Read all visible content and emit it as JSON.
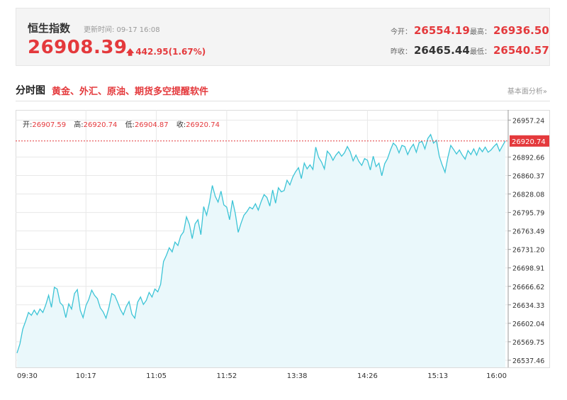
{
  "quote": {
    "name": "恒生指数",
    "update_time": "更新时间: 09-17 16:08",
    "price": "26908.39",
    "change": "442.95(1.67%)",
    "open_label": "今开：",
    "open": "26554.19",
    "high_label": "最高：",
    "high": "26936.50",
    "prev_close_label": "昨收：",
    "prev_close": "26465.44",
    "low_label": "最低：",
    "low": "26540.57"
  },
  "section": {
    "title": "分时图",
    "promo": "黄金、外汇、原油、期货多空提醒软件",
    "link": "基本面分析»"
  },
  "ohlc": {
    "open_label": "开:",
    "open": "26907.59",
    "high_label": "高:",
    "high": "26920.74",
    "low_label": "低:",
    "low": "26904.87",
    "close_label": "收:",
    "close": "26920.74"
  },
  "colors": {
    "up": "#e4393c",
    "line": "#3cc4d6",
    "area": "#eaf8fb",
    "grid": "#e8e8e8"
  },
  "chart_data": {
    "type": "area",
    "title": "",
    "xlabel": "",
    "ylabel": "",
    "x_ticks": [
      "09:30",
      "10:17",
      "11:05",
      "11:52",
      "13:38",
      "14:26",
      "15:13",
      "16:00"
    ],
    "y_ticks": [
      26537.46,
      26569.75,
      26602.04,
      26634.33,
      26666.62,
      26698.91,
      26731.2,
      26763.49,
      26795.79,
      26828.08,
      26860.37,
      26892.66,
      26920.74,
      26957.24
    ],
    "ylim": [
      26525,
      26975
    ],
    "current_value": 26920.74,
    "current_label": "26920.74",
    "grid": true,
    "series": [
      {
        "values": [
          26550,
          26566,
          26592,
          26606,
          26621,
          26616,
          26625,
          26617,
          26627,
          26621,
          26634,
          26651,
          26630,
          26665,
          26662,
          26638,
          26633,
          26612,
          26636,
          26627,
          26654,
          26661,
          26625,
          26612,
          26633,
          26644,
          26660,
          26651,
          26645,
          26629,
          26622,
          26611,
          26630,
          26654,
          26651,
          26639,
          26626,
          26617,
          26631,
          26640,
          26618,
          26611,
          26639,
          26648,
          26635,
          26642,
          26656,
          26648,
          26662,
          26657,
          26670,
          26710,
          26721,
          26734,
          26727,
          26744,
          26738,
          26755,
          26762,
          26788,
          26775,
          26750,
          26776,
          26783,
          26757,
          26806,
          26791,
          26813,
          26843,
          26824,
          26814,
          26833,
          26809,
          26805,
          26783,
          26817,
          26794,
          26761,
          26777,
          26791,
          26797,
          26805,
          26802,
          26811,
          26800,
          26815,
          26827,
          26822,
          26807,
          26835,
          26812,
          26839,
          26832,
          26834,
          26852,
          26844,
          26858,
          26867,
          26874,
          26855,
          26882,
          26872,
          26879,
          26871,
          26910,
          26892,
          26884,
          26872,
          26903,
          26897,
          26887,
          26896,
          26902,
          26894,
          26900,
          26911,
          26902,
          26886,
          26896,
          26885,
          26878,
          26890,
          26887,
          26870,
          26894,
          26876,
          26882,
          26860,
          26881,
          26890,
          26905,
          26917,
          26912,
          26900,
          26913,
          26911,
          26897,
          26908,
          26915,
          26901,
          26918,
          26920,
          26907,
          26925,
          26932,
          26917,
          26922,
          26894,
          26879,
          26866,
          26892,
          26913,
          26906,
          26898,
          26905,
          26896,
          26889,
          26904,
          26897,
          26907,
          26896,
          26909,
          26902,
          26910,
          26901,
          26905,
          26911,
          26916,
          26903,
          26912,
          26921
        ]
      }
    ]
  }
}
